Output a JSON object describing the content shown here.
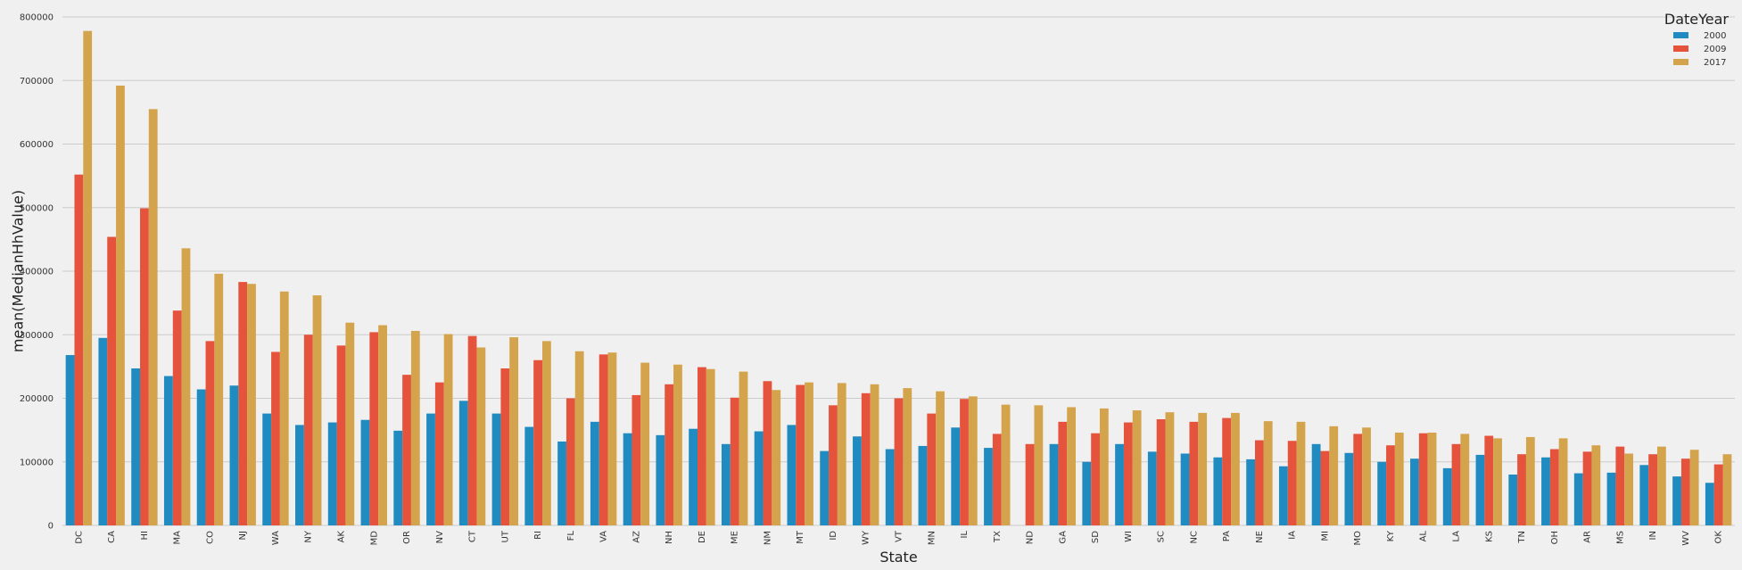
{
  "chart_data": {
    "type": "bar",
    "xlabel": "State",
    "ylabel": "mean(MedianHhValue)",
    "ylim": [
      0,
      800000
    ],
    "yticks": [
      "0",
      "100000",
      "200000",
      "300000",
      "400000",
      "500000",
      "600000",
      "700000",
      "800000"
    ],
    "grid": true,
    "legend": {
      "title": "DateYear",
      "placement": "top-right"
    },
    "categories": [
      "DC",
      "CA",
      "HI",
      "MA",
      "CO",
      "NJ",
      "WA",
      "NY",
      "AK",
      "MD",
      "OR",
      "NV",
      "CT",
      "UT",
      "RI",
      "FL",
      "VA",
      "AZ",
      "NH",
      "DE",
      "ME",
      "NM",
      "MT",
      "ID",
      "WY",
      "VT",
      "MN",
      "IL",
      "TX",
      "ND",
      "GA",
      "SD",
      "WI",
      "SC",
      "NC",
      "PA",
      "NE",
      "IA",
      "MI",
      "MO",
      "KY",
      "AL",
      "LA",
      "KS",
      "TN",
      "OH",
      "AR",
      "MS",
      "IN",
      "WV",
      "OK"
    ],
    "series": [
      {
        "name": "2000",
        "color": "#1f8bc0",
        "values": [
          268000,
          295000,
          247000,
          235000,
          214000,
          220000,
          176000,
          158000,
          162000,
          166000,
          149000,
          176000,
          196000,
          176000,
          155000,
          132000,
          163000,
          145000,
          142000,
          152000,
          128000,
          148000,
          158000,
          117000,
          140000,
          120000,
          125000,
          154000,
          122000,
          0,
          128000,
          100000,
          128000,
          116000,
          113000,
          107000,
          104000,
          93000,
          128000,
          114000,
          100000,
          105000,
          90000,
          111000,
          80000,
          107000,
          82000,
          83000,
          95000,
          77000,
          67000
        ]
      },
      {
        "name": "2009",
        "color": "#e5533d",
        "values": [
          552000,
          454000,
          499000,
          338000,
          290000,
          383000,
          273000,
          300000,
          283000,
          304000,
          237000,
          225000,
          298000,
          247000,
          260000,
          200000,
          269000,
          205000,
          222000,
          249000,
          201000,
          227000,
          221000,
          189000,
          208000,
          200000,
          176000,
          199000,
          144000,
          128000,
          163000,
          145000,
          162000,
          167000,
          163000,
          169000,
          134000,
          133000,
          117000,
          144000,
          126000,
          145000,
          128000,
          141000,
          112000,
          120000,
          116000,
          124000,
          112000,
          105000,
          96000
        ]
      },
      {
        "name": "2017",
        "color": "#d4a44c",
        "values": [
          778000,
          692000,
          655000,
          436000,
          396000,
          380000,
          368000,
          362000,
          319000,
          315000,
          306000,
          301000,
          280000,
          296000,
          290000,
          274000,
          272000,
          256000,
          253000,
          246000,
          242000,
          213000,
          225000,
          224000,
          222000,
          216000,
          211000,
          203000,
          190000,
          189000,
          186000,
          184000,
          181000,
          178000,
          177000,
          177000,
          164000,
          163000,
          156000,
          154000,
          146000,
          146000,
          144000,
          137000,
          139000,
          137000,
          126000,
          113000,
          124000,
          119000,
          112000
        ]
      }
    ]
  }
}
